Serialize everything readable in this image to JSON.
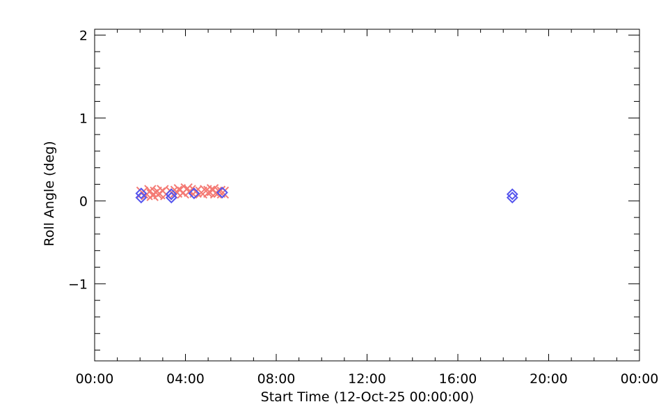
{
  "chart_data": {
    "type": "scatter",
    "xlabel": "Start Time (12-Oct-25 00:00:00)",
    "ylabel": "Roll Angle (deg)",
    "xlim": [
      0,
      24
    ],
    "ylim": [
      -1.93,
      2.07
    ],
    "x_ticks": [
      0,
      4,
      8,
      12,
      16,
      20,
      24
    ],
    "x_tick_labels": [
      "00:00",
      "04:00",
      "08:00",
      "12:00",
      "16:00",
      "20:00",
      "00:00"
    ],
    "y_ticks": [
      -1,
      0,
      1,
      2
    ],
    "y_tick_labels": [
      "−1",
      "0",
      "1",
      "2"
    ],
    "x_minor_step_hours": 1,
    "y_minor_step": 0.2,
    "x_unit": "hours after 12-Oct-25 00:00:00",
    "grid": false,
    "series": [
      {
        "marker": "x",
        "color": "#f47a74",
        "points": [
          [
            2.1,
            0.1
          ],
          [
            2.3,
            0.08
          ],
          [
            2.45,
            0.12
          ],
          [
            2.55,
            0.07
          ],
          [
            2.7,
            0.1
          ],
          [
            2.85,
            0.09
          ],
          [
            3.0,
            0.12
          ],
          [
            3.15,
            0.08
          ],
          [
            3.4,
            0.1
          ],
          [
            3.6,
            0.11
          ],
          [
            3.75,
            0.13
          ],
          [
            3.9,
            0.1
          ],
          [
            4.05,
            0.14
          ],
          [
            4.2,
            0.12
          ],
          [
            4.45,
            0.11
          ],
          [
            4.7,
            0.1
          ],
          [
            4.9,
            0.12
          ],
          [
            5.05,
            0.11
          ],
          [
            5.2,
            0.13
          ],
          [
            5.35,
            0.1
          ],
          [
            5.5,
            0.11
          ],
          [
            5.65,
            0.1
          ]
        ]
      },
      {
        "marker": "diamond",
        "color": "#5555ee",
        "points": [
          [
            2.05,
            0.04
          ],
          [
            2.05,
            0.09
          ],
          [
            3.38,
            0.04
          ],
          [
            3.38,
            0.08
          ],
          [
            4.38,
            0.09
          ],
          [
            5.62,
            0.1
          ],
          [
            18.4,
            0.04
          ],
          [
            18.4,
            0.08
          ]
        ]
      }
    ]
  }
}
